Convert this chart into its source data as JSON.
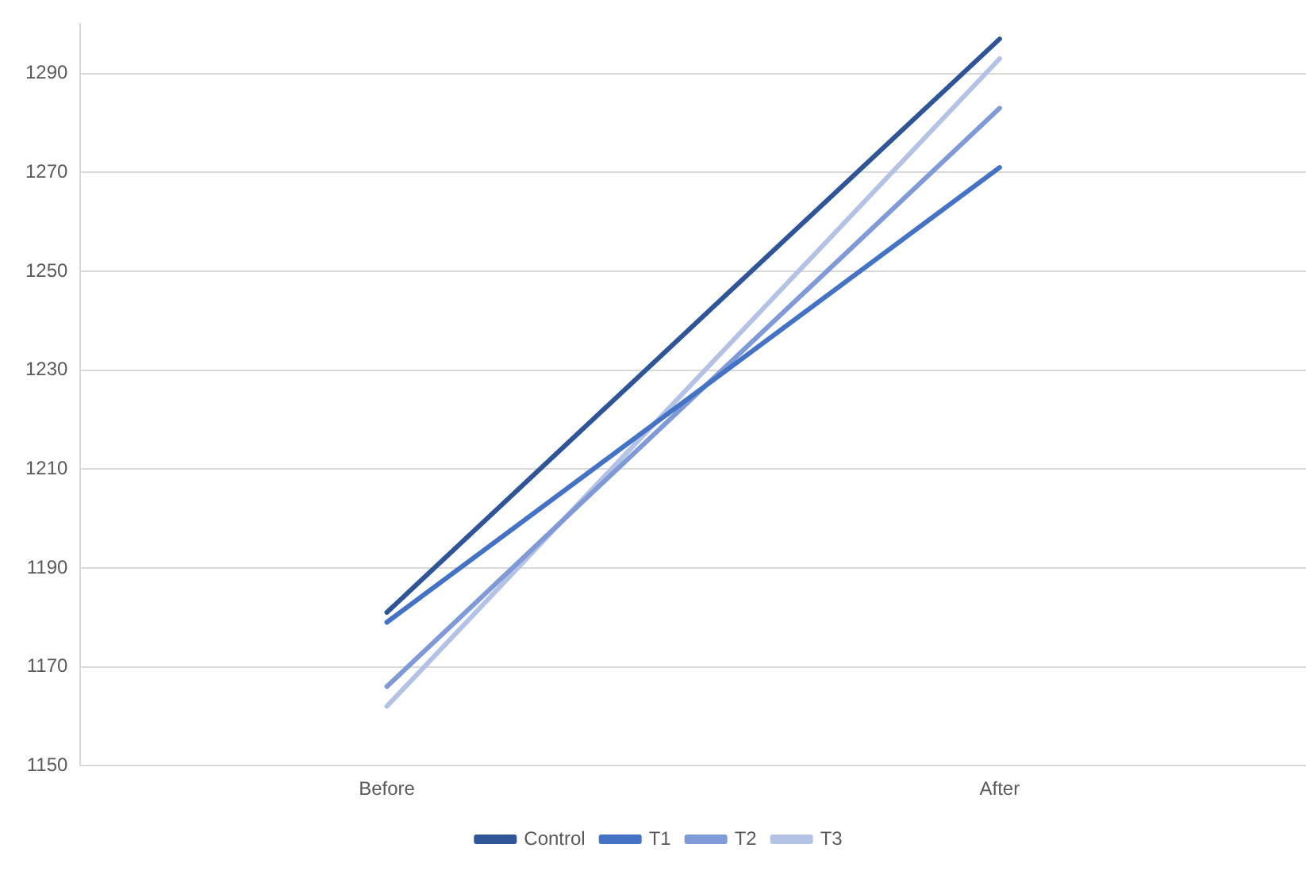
{
  "chart_data": {
    "type": "line",
    "categories": [
      "Before",
      "After"
    ],
    "series": [
      {
        "name": "Control",
        "color": "#2f5597",
        "values": [
          1181,
          1297
        ]
      },
      {
        "name": "T1",
        "color": "#4472c4",
        "values": [
          1179,
          1271
        ]
      },
      {
        "name": "T2",
        "color": "#7f9ad6",
        "values": [
          1166,
          1283
        ]
      },
      {
        "name": "T3",
        "color": "#b4c2e6",
        "values": [
          1162,
          1293
        ]
      }
    ],
    "ylim": [
      1150,
      1300
    ],
    "yticks": [
      1150,
      1170,
      1190,
      1210,
      1230,
      1250,
      1270,
      1290
    ],
    "grid": "y",
    "legend": "bottom",
    "marker": "none",
    "line_style": "solid"
  }
}
